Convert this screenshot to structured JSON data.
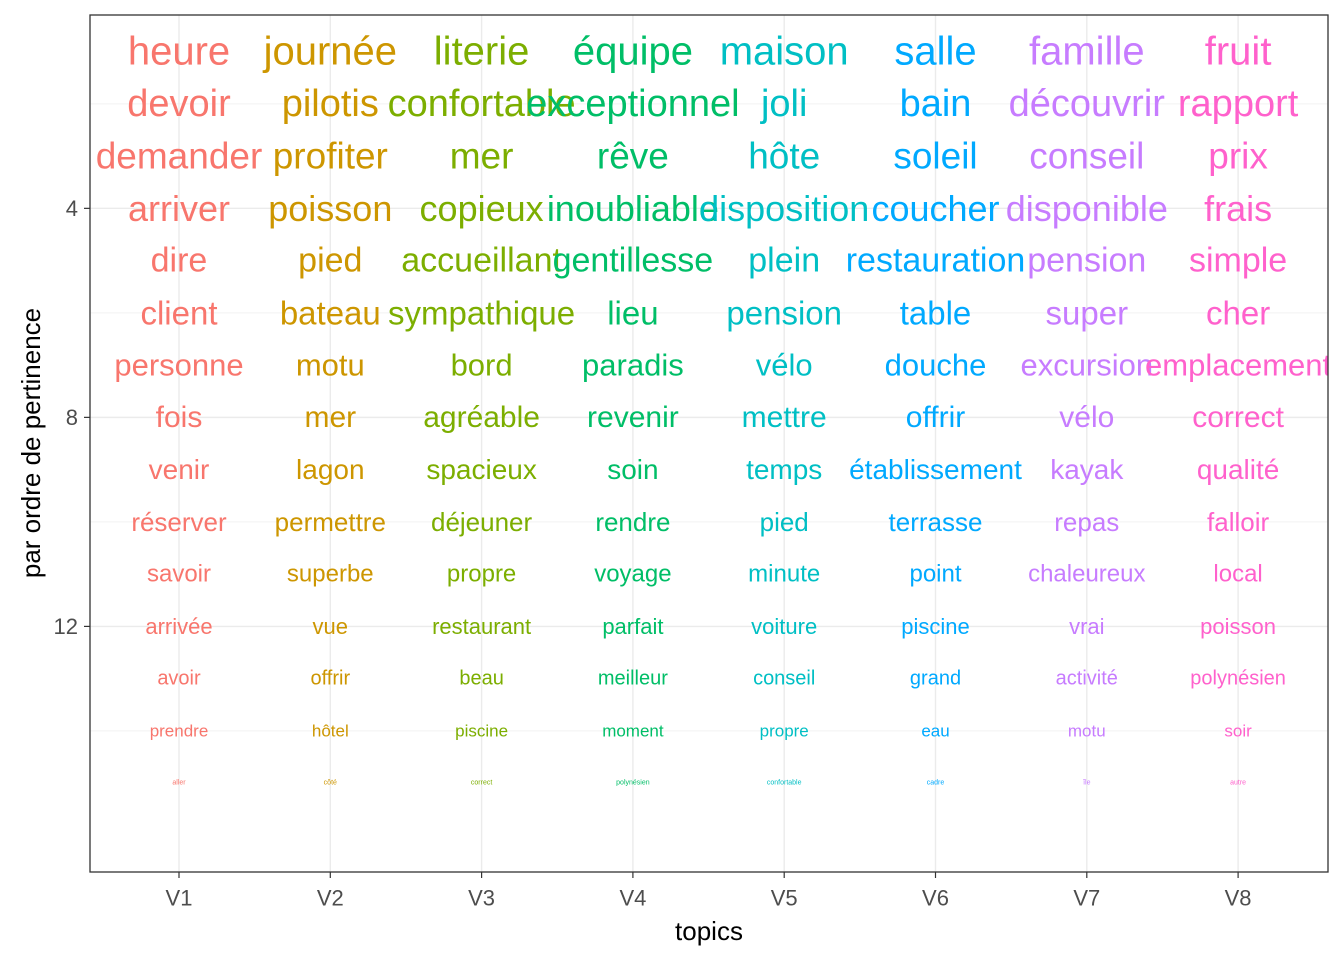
{
  "chart_data": {
    "type": "scatter",
    "xlabel": "topics",
    "ylabel": "par ordre de pertinence",
    "x_categories": [
      "V1",
      "V2",
      "V3",
      "V4",
      "V5",
      "V6",
      "V7",
      "V8"
    ],
    "y_ticks": [
      4,
      8,
      12
    ],
    "ylim": [
      0.3,
      16.7
    ],
    "y_reversed": true,
    "grid": true,
    "legend": "none",
    "colors": [
      "#F8766D",
      "#CD9600",
      "#7CAE00",
      "#00BE67",
      "#00BFC4",
      "#00A9FF",
      "#C77CFF",
      "#FF61CC"
    ],
    "series": [
      {
        "name": "V1",
        "words": [
          "heure",
          "devoir",
          "demander",
          "arriver",
          "dire",
          "client",
          "personne",
          "fois",
          "venir",
          "réserver",
          "savoir",
          "arrivée",
          "avoir",
          "prendre",
          "aller"
        ]
      },
      {
        "name": "V2",
        "words": [
          "journée",
          "pilotis",
          "profiter",
          "poisson",
          "pied",
          "bateau",
          "motu",
          "mer",
          "lagon",
          "permettre",
          "superbe",
          "vue",
          "offrir",
          "hôtel",
          "côté"
        ]
      },
      {
        "name": "V3",
        "words": [
          "literie",
          "confortable",
          "mer",
          "copieux",
          "accueillant",
          "sympathique",
          "bord",
          "agréable",
          "spacieux",
          "déjeuner",
          "propre",
          "restaurant",
          "beau",
          "piscine",
          "correct"
        ]
      },
      {
        "name": "V4",
        "words": [
          "équipe",
          "exceptionnel",
          "rêve",
          "inoubliable",
          "gentillesse",
          "lieu",
          "paradis",
          "revenir",
          "soin",
          "rendre",
          "voyage",
          "parfait",
          "meilleur",
          "moment",
          "polynésien"
        ]
      },
      {
        "name": "V5",
        "words": [
          "maison",
          "joli",
          "hôte",
          "disposition",
          "plein",
          "pension",
          "vélo",
          "mettre",
          "temps",
          "pied",
          "minute",
          "voiture",
          "conseil",
          "propre",
          "confortable"
        ]
      },
      {
        "name": "V6",
        "words": [
          "salle",
          "bain",
          "soleil",
          "coucher",
          "restauration",
          "table",
          "douche",
          "offrir",
          "établissement",
          "terrasse",
          "point",
          "piscine",
          "grand",
          "eau",
          "cadre"
        ]
      },
      {
        "name": "V7",
        "words": [
          "famille",
          "découvrir",
          "conseil",
          "disponible",
          "pension",
          "super",
          "excursion",
          "vélo",
          "kayak",
          "repas",
          "chaleureux",
          "vrai",
          "activité",
          "motu",
          "île"
        ]
      },
      {
        "name": "V8",
        "words": [
          "fruit",
          "rapport",
          "prix",
          "frais",
          "simple",
          "cher",
          "emplacement",
          "correct",
          "qualité",
          "falloir",
          "local",
          "poisson",
          "polynésien",
          "soir",
          "autre"
        ]
      }
    ]
  }
}
